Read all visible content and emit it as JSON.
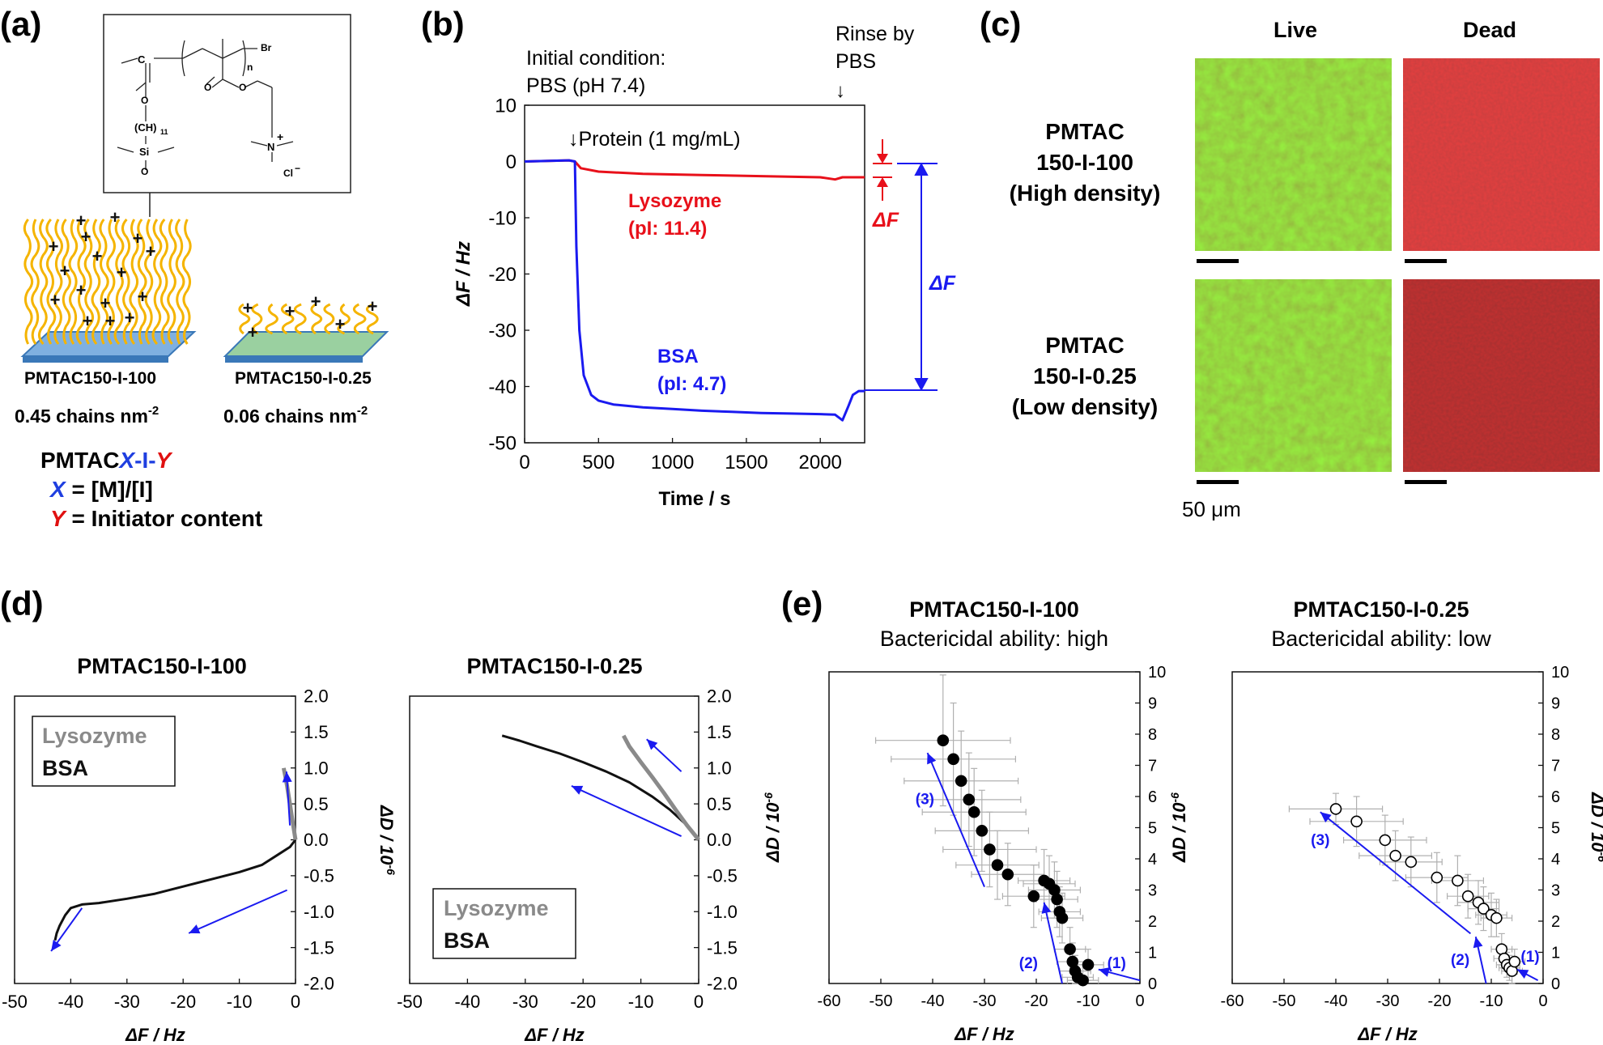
{
  "figure": {
    "panel_labels": [
      "(a)",
      "(b)",
      "(c)",
      "(d)",
      "(e)"
    ]
  },
  "panel_a": {
    "chem_labels": {
      "c": "C",
      "n": "n",
      "br": "Br",
      "ch": "(CH)",
      "sub11": "11",
      "si": "Si",
      "o": "O",
      "n_plus": "N",
      "plus": "+",
      "cl": "Cl",
      "minus": "−"
    },
    "brush_high_label": "PMTAC150-I-100",
    "brush_low_label": "PMTAC150-I-0.25",
    "density_high": "0.45 chains nm",
    "density_low": "0.06 chains nm",
    "density_exponent": "-2",
    "naming_prefix": "PMTAC",
    "naming_x": "X",
    "naming_dash1": "-I-",
    "naming_y": "Y",
    "x_def_var": "X",
    "x_def_text": " = [M]/[I]",
    "y_def_var": "Y",
    "y_def_text": " = Initiator content",
    "colors": {
      "brush": "#f5b400",
      "substrate": "#5aa0d8",
      "x": "#1f3fe0",
      "y": "#e01010"
    }
  },
  "panel_c": {
    "col_live": "Live",
    "col_dead": "Dead",
    "row1": [
      "PMTAC",
      "150-I-100",
      "(High density)"
    ],
    "row2": [
      "PMTAC",
      "150-I-0.25",
      "(Low density)"
    ],
    "scale_bar": "50 μm",
    "colors": {
      "live": "#4a9a1a",
      "dead_high": "#a81010",
      "dead_low": "#6e0c0c"
    }
  },
  "panel_d": {
    "plot1_title": "PMTAC150-I-100",
    "plot2_title": "PMTAC150-I-0.25",
    "legend_lysozyme": "Lysozyme",
    "legend_bsa": "BSA"
  },
  "panel_e": {
    "plot1_title": "PMTAC150-I-100",
    "plot1_subtitle": "Bactericidal ability: high",
    "plot2_title": "PMTAC150-I-0.25",
    "plot2_subtitle": "Bactericidal ability: low",
    "arrow_labels": [
      "(1)",
      "(2)",
      "(3)"
    ]
  },
  "chart_data": [
    {
      "id": "b",
      "type": "line",
      "xlabel": "Time / s",
      "ylabel": "ΔF / Hz",
      "xlim": [
        0,
        2300
      ],
      "ylim": [
        -50,
        10
      ],
      "x_ticks": [
        0,
        500,
        1000,
        1500,
        2000
      ],
      "y_ticks": [
        10,
        0,
        -10,
        -20,
        -30,
        -40,
        -50
      ],
      "grid": false,
      "annotations": {
        "initial_1": "Initial condition:",
        "initial_2": "PBS (pH 7.4)",
        "rinse_1": "Rinse by",
        "rinse_2": "PBS",
        "rinse_arrow": "↓",
        "protein": "↓Protein (1 mg/mL)",
        "lysozyme_1": "Lysozyme",
        "lysozyme_2": "(pI: 11.4)",
        "bsa_1": "BSA",
        "bsa_2": "(pI: 4.7)",
        "delta_f": "ΔF"
      },
      "series": [
        {
          "name": "Lysozyme",
          "color": "#e8101a",
          "x": [
            0,
            300,
            340,
            380,
            500,
            800,
            1200,
            1600,
            2000,
            2100,
            2150,
            2200,
            2300
          ],
          "y": [
            0,
            0.2,
            0,
            -1.2,
            -1.8,
            -2.2,
            -2.4,
            -2.6,
            -2.8,
            -3.2,
            -2.8,
            -2.8,
            -2.8
          ]
        },
        {
          "name": "BSA",
          "color": "#1a1af0",
          "x": [
            0,
            300,
            340,
            350,
            370,
            400,
            450,
            500,
            600,
            800,
            1000,
            1200,
            1400,
            1600,
            1800,
            2000,
            2100,
            2150,
            2190,
            2220,
            2260,
            2300
          ],
          "y": [
            0,
            0.2,
            0,
            -15,
            -30,
            -38,
            -41.5,
            -42.5,
            -43.2,
            -43.7,
            -44.0,
            -44.3,
            -44.5,
            -44.7,
            -44.8,
            -44.9,
            -45.0,
            -46.0,
            -43.5,
            -41.5,
            -40.8,
            -40.8
          ]
        }
      ]
    },
    {
      "id": "d1",
      "type": "line",
      "title": "PMTAC150-I-100",
      "xlabel": "ΔF / Hz",
      "ylabel": "ΔD / 10",
      "ylabel_exp": "-6",
      "xlim": [
        -50,
        0
      ],
      "ylim": [
        -2.0,
        2.0
      ],
      "x_ticks": [
        -50,
        -40,
        -30,
        -20,
        -10,
        0
      ],
      "y_ticks": [
        2.0,
        1.5,
        1.0,
        0.5,
        0.0,
        -0.5,
        -1.0,
        -1.5,
        -2.0
      ],
      "y_tick_labels": [
        "2.0",
        "1.5",
        "1.0",
        "0.5",
        "0.0",
        "-0.5",
        "-1.0",
        "-1.5",
        "-2.0"
      ],
      "legend": "top-left",
      "series": [
        {
          "name": "BSA",
          "color": "#111111",
          "x": [
            0,
            -1,
            -3,
            -6,
            -10,
            -15,
            -20,
            -25,
            -30,
            -35,
            -38,
            -40,
            -41,
            -42,
            -42.5,
            -42.8
          ],
          "y": [
            0,
            -0.1,
            -0.2,
            -0.35,
            -0.45,
            -0.55,
            -0.65,
            -0.75,
            -0.82,
            -0.88,
            -0.9,
            -0.95,
            -1.05,
            -1.2,
            -1.3,
            -1.4
          ]
        },
        {
          "name": "Lysozyme",
          "color": "#8a8a8a",
          "x": [
            0,
            -0.3,
            -0.6,
            -0.9,
            -1.2,
            -1.5,
            -1.8,
            -2.1
          ],
          "y": [
            0,
            0.15,
            0.3,
            0.45,
            0.6,
            0.75,
            0.88,
            1.0
          ]
        }
      ]
    },
    {
      "id": "d2",
      "type": "line",
      "title": "PMTAC150-I-0.25",
      "xlabel": "ΔF / Hz",
      "ylabel": "ΔD / 10",
      "ylabel_exp": "-6",
      "xlim": [
        -50,
        0
      ],
      "ylim": [
        -2.0,
        2.0
      ],
      "x_ticks": [
        -50,
        -40,
        -30,
        -20,
        -10,
        0
      ],
      "y_ticks": [
        2.0,
        1.5,
        1.0,
        0.5,
        0.0,
        -0.5,
        -1.0,
        -1.5,
        -2.0
      ],
      "y_tick_labels": [
        "2.0",
        "1.5",
        "1.0",
        "0.5",
        "0.0",
        "-0.5",
        "-1.0",
        "-1.5",
        "-2.0"
      ],
      "legend": "bottom-left",
      "series": [
        {
          "name": "BSA",
          "color": "#111111",
          "x": [
            0,
            -2,
            -5,
            -8,
            -12,
            -16,
            -20,
            -24,
            -28,
            -31,
            -34
          ],
          "y": [
            0,
            0.2,
            0.42,
            0.6,
            0.8,
            0.95,
            1.08,
            1.2,
            1.3,
            1.38,
            1.45
          ]
        },
        {
          "name": "Lysozyme",
          "color": "#8a8a8a",
          "x": [
            0,
            -2,
            -4,
            -6,
            -8,
            -10,
            -12,
            -13
          ],
          "y": [
            0,
            0.2,
            0.42,
            0.65,
            0.87,
            1.08,
            1.3,
            1.45
          ]
        }
      ]
    },
    {
      "id": "e1",
      "type": "scatter",
      "title": "PMTAC150-I-100",
      "subtitle": "Bactericidal ability: high",
      "xlabel": "ΔF / Hz",
      "ylabel": "ΔD / 10",
      "ylabel_exp": "-6",
      "xlim": [
        -60,
        0
      ],
      "ylim": [
        0,
        10
      ],
      "x_ticks": [
        -60,
        -50,
        -40,
        -30,
        -20,
        -10,
        0
      ],
      "y_ticks": [
        10,
        9,
        8,
        7,
        6,
        5,
        4,
        3,
        2,
        1,
        0
      ],
      "marker": "filled",
      "series": [
        {
          "name": "",
          "color": "#000000",
          "points": [
            {
              "x": -38,
              "y": 7.8,
              "xerr": 13,
              "yerr": 2.1
            },
            {
              "x": -36,
              "y": 7.2,
              "xerr": 12,
              "yerr": 1.8
            },
            {
              "x": -34.5,
              "y": 6.5,
              "xerr": 11,
              "yerr": 1.6
            },
            {
              "x": -33,
              "y": 5.9,
              "xerr": 10,
              "yerr": 1.5
            },
            {
              "x": -32,
              "y": 5.5,
              "xerr": 10,
              "yerr": 1.4
            },
            {
              "x": -30.5,
              "y": 4.9,
              "xerr": 9,
              "yerr": 1.3
            },
            {
              "x": -29,
              "y": 4.3,
              "xerr": 9,
              "yerr": 1.2
            },
            {
              "x": -27.5,
              "y": 3.8,
              "xerr": 8,
              "yerr": 1.1
            },
            {
              "x": -25.5,
              "y": 3.5,
              "xerr": 7,
              "yerr": 1.0
            },
            {
              "x": -20.5,
              "y": 2.8,
              "xerr": 6,
              "yerr": 1.0
            },
            {
              "x": -18.5,
              "y": 3.3,
              "xerr": 5,
              "yerr": 1.0
            },
            {
              "x": -17.5,
              "y": 3.2,
              "xerr": 5,
              "yerr": 0.9
            },
            {
              "x": -16.5,
              "y": 3.0,
              "xerr": 5,
              "yerr": 0.9
            },
            {
              "x": -16,
              "y": 2.7,
              "xerr": 4,
              "yerr": 0.9
            },
            {
              "x": -15.5,
              "y": 2.3,
              "xerr": 4,
              "yerr": 0.8
            },
            {
              "x": -15,
              "y": 2.1,
              "xerr": 4,
              "yerr": 0.8
            },
            {
              "x": -13.5,
              "y": 1.1,
              "xerr": 3,
              "yerr": 0.7
            },
            {
              "x": -13,
              "y": 0.7,
              "xerr": 3,
              "yerr": 0.6
            },
            {
              "x": -12.5,
              "y": 0.4,
              "xerr": 3,
              "yerr": 0.5
            },
            {
              "x": -12,
              "y": 0.2,
              "xerr": 3,
              "yerr": 0.5
            },
            {
              "x": -11,
              "y": 0.1,
              "xerr": 3,
              "yerr": 0.5
            },
            {
              "x": -10,
              "y": 0.6,
              "xerr": 3,
              "yerr": 0.5
            }
          ]
        }
      ]
    },
    {
      "id": "e2",
      "type": "scatter",
      "title": "PMTAC150-I-0.25",
      "subtitle": "Bactericidal ability: low",
      "xlabel": "ΔF / Hz",
      "ylabel": "ΔD / 10",
      "ylabel_exp": "-6",
      "xlim": [
        -60,
        0
      ],
      "ylim": [
        0,
        10
      ],
      "x_ticks": [
        -60,
        -50,
        -40,
        -30,
        -20,
        -10,
        0
      ],
      "y_ticks": [
        10,
        9,
        8,
        7,
        6,
        5,
        4,
        3,
        2,
        1,
        0
      ],
      "marker": "open",
      "series": [
        {
          "name": "",
          "color": "#000000",
          "points": [
            {
              "x": -40,
              "y": 5.6,
              "xerr": 9,
              "yerr": 0.5
            },
            {
              "x": -36,
              "y": 5.2,
              "xerr": 9,
              "yerr": 0.8
            },
            {
              "x": -30.5,
              "y": 4.6,
              "xerr": 8,
              "yerr": 0.8
            },
            {
              "x": -28.5,
              "y": 4.1,
              "xerr": 7,
              "yerr": 0.8
            },
            {
              "x": -25.5,
              "y": 3.9,
              "xerr": 6,
              "yerr": 0.8
            },
            {
              "x": -20.5,
              "y": 3.4,
              "xerr": 6,
              "yerr": 0.8
            },
            {
              "x": -16.5,
              "y": 3.3,
              "xerr": 5,
              "yerr": 0.8
            },
            {
              "x": -14.5,
              "y": 2.8,
              "xerr": 4,
              "yerr": 0.7
            },
            {
              "x": -12.5,
              "y": 2.6,
              "xerr": 4,
              "yerr": 0.7
            },
            {
              "x": -11.5,
              "y": 2.4,
              "xerr": 3,
              "yerr": 0.7
            },
            {
              "x": -10,
              "y": 2.2,
              "xerr": 3,
              "yerr": 0.7
            },
            {
              "x": -9,
              "y": 2.1,
              "xerr": 3,
              "yerr": 0.6
            },
            {
              "x": -8,
              "y": 1.1,
              "xerr": 2,
              "yerr": 0.5
            },
            {
              "x": -7.5,
              "y": 0.8,
              "xerr": 2,
              "yerr": 0.4
            },
            {
              "x": -7,
              "y": 0.6,
              "xerr": 2,
              "yerr": 0.4
            },
            {
              "x": -6.5,
              "y": 0.5,
              "xerr": 2,
              "yerr": 0.4
            },
            {
              "x": -6,
              "y": 0.4,
              "xerr": 2,
              "yerr": 0.4
            },
            {
              "x": -5.5,
              "y": 0.7,
              "xerr": 2,
              "yerr": 0.4
            }
          ]
        }
      ]
    }
  ]
}
